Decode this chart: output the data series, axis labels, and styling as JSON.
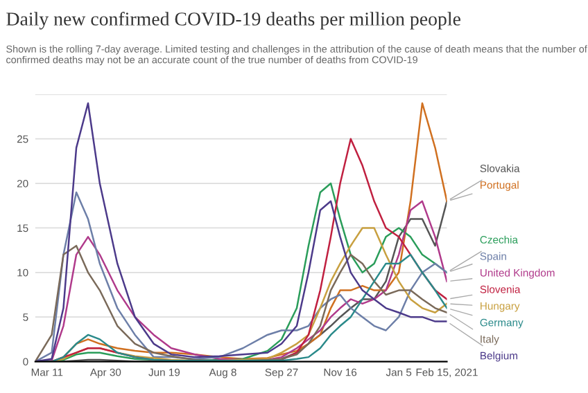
{
  "chart_data": {
    "type": "line",
    "title": "Daily new confirmed COVID-19 deaths per million people",
    "subtitle": "Shown is the rolling 7-day average. Limited testing and challenges in the attribution of the cause of death means that the number of confirmed deaths may not be an accurate count of the true number of deaths from COVID-19",
    "x": [
      "2020-03-01",
      "2020-03-15",
      "2020-03-25",
      "2020-04-05",
      "2020-04-15",
      "2020-04-25",
      "2020-05-10",
      "2020-05-25",
      "2020-06-10",
      "2020-06-25",
      "2020-07-15",
      "2020-08-05",
      "2020-08-25",
      "2020-09-15",
      "2020-09-27",
      "2020-10-10",
      "2020-10-20",
      "2020-10-30",
      "2020-11-08",
      "2020-11-16",
      "2020-11-25",
      "2020-12-05",
      "2020-12-15",
      "2020-12-25",
      "2021-01-05",
      "2021-01-15",
      "2021-01-25",
      "2021-02-05",
      "2021-02-15"
    ],
    "xlim": [
      "2020-03-01",
      "2021-02-15"
    ],
    "xticks": [
      {
        "value": "2020-03-11",
        "label": "Mar 11"
      },
      {
        "value": "2020-04-30",
        "label": "Apr 30"
      },
      {
        "value": "2020-06-19",
        "label": "Jun 19"
      },
      {
        "value": "2020-08-08",
        "label": "Aug 8"
      },
      {
        "value": "2020-09-27",
        "label": "Sep 27"
      },
      {
        "value": "2020-11-16",
        "label": "Nov 16"
      },
      {
        "value": "2021-01-05",
        "label": "Jan 5"
      },
      {
        "value": "2021-02-15",
        "label": "Feb 15, 2021"
      }
    ],
    "ylim": [
      0,
      30
    ],
    "yticks": [
      0,
      5,
      10,
      15,
      20,
      25,
      {
        "value": 30,
        "label": null
      }
    ],
    "grid": "y",
    "series": [
      {
        "name": "Slovakia",
        "color": "#555555",
        "values": [
          0,
          0,
          0,
          0.1,
          0.2,
          0.2,
          0.1,
          0,
          0,
          0,
          0,
          0,
          0,
          0.1,
          0.3,
          1,
          2,
          3,
          4,
          5,
          6,
          7,
          7,
          9,
          14,
          16,
          16,
          13,
          18
        ]
      },
      {
        "name": "Portugal",
        "color": "#d07020",
        "values": [
          0,
          0,
          0.5,
          2,
          2.5,
          2,
          1.5,
          1.2,
          1,
          1,
          0.8,
          0.5,
          0.3,
          0.4,
          0.8,
          1.2,
          2,
          3,
          6,
          8,
          8,
          8.5,
          8,
          8,
          10,
          18,
          29,
          24,
          18
        ]
      },
      {
        "name": "Czechia",
        "color": "#2a9d5a",
        "values": [
          0,
          0,
          0.2,
          0.8,
          1,
          1,
          0.6,
          0.3,
          0.2,
          0.1,
          0.1,
          0.2,
          0.3,
          1.2,
          2.5,
          6,
          13,
          19,
          20,
          16,
          12,
          10,
          11,
          14,
          15,
          14,
          12,
          11,
          10
        ]
      },
      {
        "name": "United Kingdom",
        "color": "#b03a8b",
        "values": [
          0,
          0.1,
          4,
          12,
          14,
          12,
          8,
          5,
          3,
          1.5,
          0.8,
          0.3,
          0.2,
          0.2,
          0.5,
          1.5,
          2.5,
          3.5,
          5,
          6,
          7,
          6.5,
          7,
          8,
          12,
          17,
          18,
          14,
          9
        ]
      },
      {
        "name": "Spain",
        "color": "#6d7fa8",
        "values": [
          0,
          1,
          12,
          19,
          16,
          11,
          6,
          3,
          0.5,
          0.5,
          0.3,
          0.5,
          1.5,
          3,
          3.5,
          3.5,
          4,
          6,
          7,
          7.5,
          6,
          5,
          4,
          3.5,
          5,
          8,
          10,
          11,
          10
        ]
      },
      {
        "name": "Hungary",
        "color": "#c8a040",
        "values": [
          0,
          0,
          0.3,
          1,
          1.5,
          1.5,
          1,
          0.6,
          0.4,
          0.2,
          0.1,
          0.1,
          0.2,
          0.3,
          1,
          2,
          3,
          6,
          9,
          11,
          13,
          15,
          15,
          12,
          9,
          7,
          6,
          5.5,
          6.5
        ]
      },
      {
        "name": "Slovenia",
        "color": "#c02040",
        "values": [
          0,
          0,
          0.5,
          1,
          1.5,
          1.5,
          1,
          0.5,
          0.2,
          0.1,
          0.1,
          0.1,
          0.1,
          0.1,
          0.2,
          1,
          3,
          8,
          14,
          20,
          25,
          22,
          18,
          15,
          14,
          12,
          10,
          8,
          7
        ]
      },
      {
        "name": "Italy",
        "color": "#7a6a5a",
        "values": [
          0,
          3,
          12,
          13,
          10,
          8,
          4,
          2,
          1,
          0.6,
          0.2,
          0.1,
          0.1,
          0.2,
          0.3,
          0.8,
          2,
          4,
          8,
          10,
          12,
          11,
          9,
          7.5,
          8,
          8,
          7,
          6,
          5.5
        ]
      },
      {
        "name": "Germany",
        "color": "#2a8a8a",
        "values": [
          0,
          0,
          0.5,
          2,
          3,
          2.5,
          1,
          0.5,
          0.2,
          0.1,
          0.1,
          0.1,
          0.1,
          0.1,
          0.1,
          0.3,
          0.5,
          1.5,
          3,
          4,
          5,
          7,
          9,
          11,
          11,
          12,
          10,
          8,
          6
        ]
      },
      {
        "name": "Belgium",
        "color": "#4c3a8a",
        "values": [
          0,
          0.3,
          6,
          24,
          29,
          20,
          11,
          5,
          2,
          0.8,
          0.5,
          0.6,
          0.8,
          1,
          2,
          4,
          10,
          17,
          18,
          14,
          10,
          8,
          7,
          6,
          5.5,
          5,
          5,
          4.5,
          4.5
        ]
      }
    ]
  }
}
